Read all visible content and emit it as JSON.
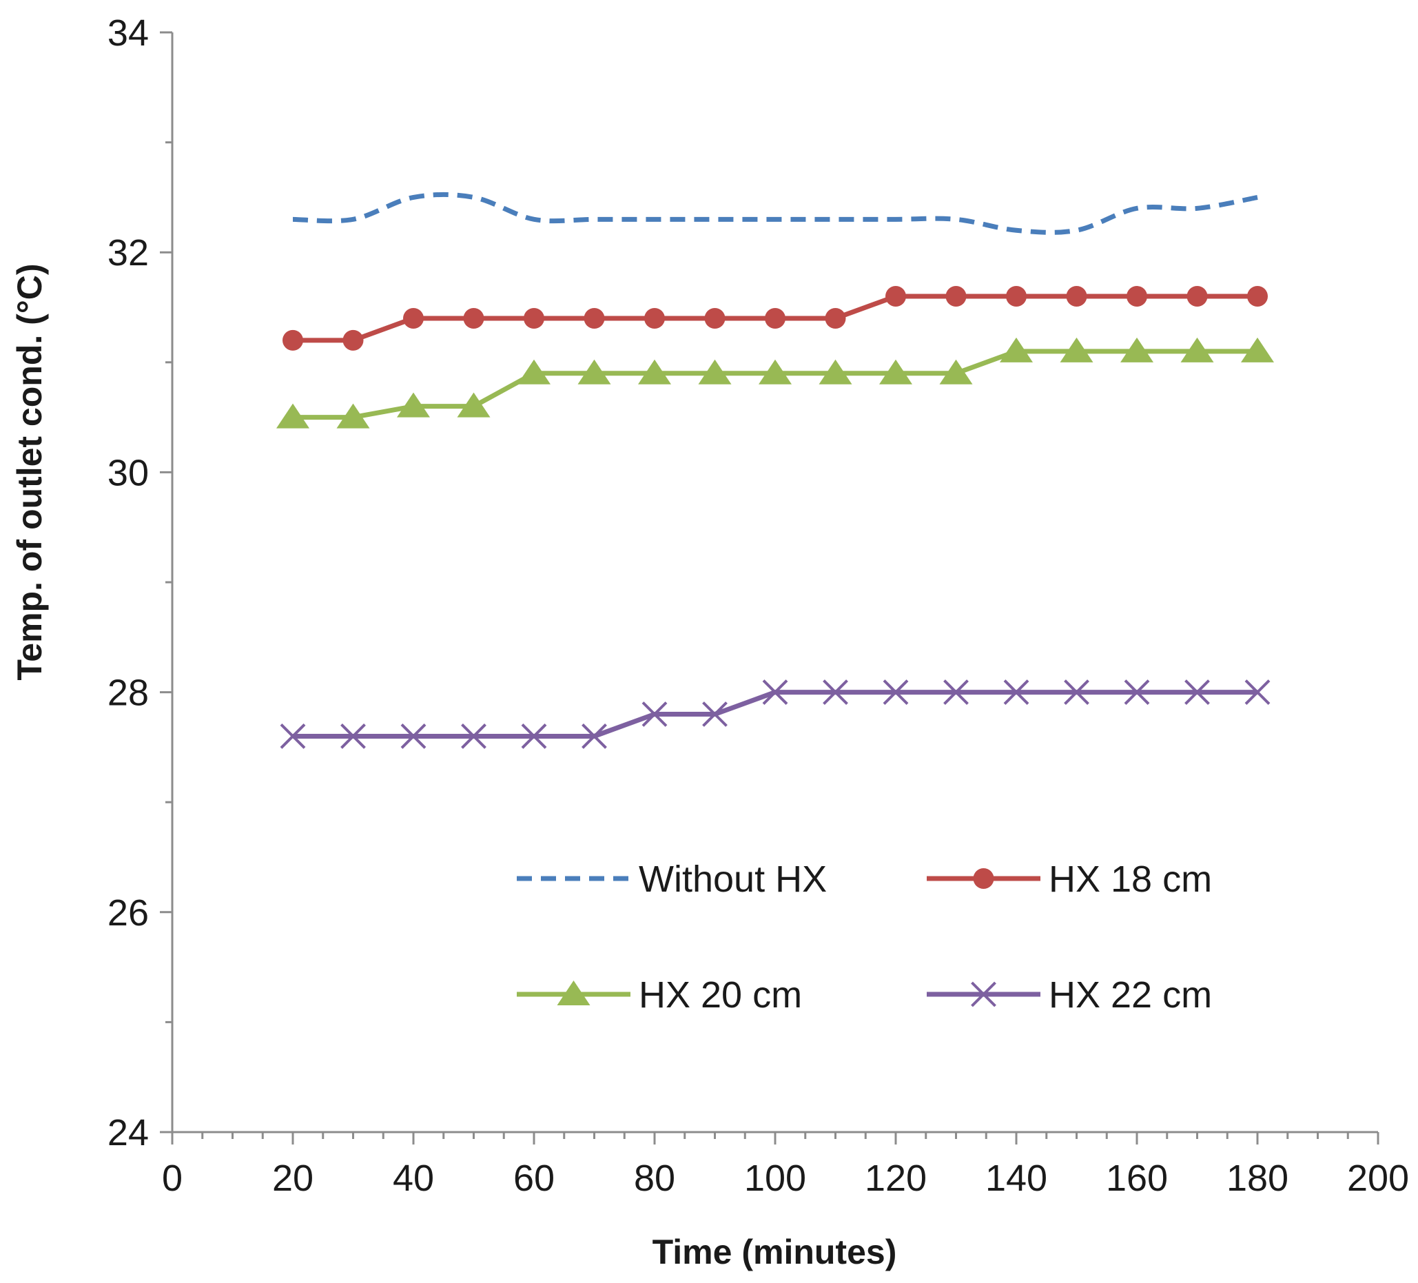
{
  "chart_data": {
    "type": "line",
    "title": "",
    "xlabel": "Time (minutes)",
    "ylabel": "Temp. of outlet cond. (°C)",
    "xlim": [
      0,
      200
    ],
    "ylim": [
      24,
      34
    ],
    "x_ticks": [
      0,
      20,
      40,
      60,
      80,
      100,
      120,
      140,
      160,
      180,
      200
    ],
    "y_ticks": [
      24,
      26,
      28,
      30,
      32,
      34
    ],
    "x_minor_step": 5,
    "y_minor_step": 1,
    "grid": false,
    "legend_position": "bottom-center",
    "x": [
      20,
      30,
      40,
      50,
      60,
      70,
      80,
      90,
      100,
      110,
      120,
      130,
      140,
      150,
      160,
      170,
      180
    ],
    "series": [
      {
        "name": "Without HX",
        "color": "#4a7ebb",
        "style": "dashed-smooth",
        "marker": "none",
        "values": [
          32.3,
          32.3,
          32.5,
          32.5,
          32.3,
          32.3,
          32.3,
          32.3,
          32.3,
          32.3,
          32.3,
          32.3,
          32.2,
          32.2,
          32.4,
          32.4,
          32.5
        ]
      },
      {
        "name": "HX 18 cm",
        "color": "#be4b48",
        "style": "solid",
        "marker": "circle",
        "values": [
          31.2,
          31.2,
          31.4,
          31.4,
          31.4,
          31.4,
          31.4,
          31.4,
          31.4,
          31.4,
          31.6,
          31.6,
          31.6,
          31.6,
          31.6,
          31.6,
          31.6
        ]
      },
      {
        "name": "HX 20 cm",
        "color": "#98b954",
        "style": "solid",
        "marker": "triangle",
        "values": [
          30.5,
          30.5,
          30.6,
          30.6,
          30.9,
          30.9,
          30.9,
          30.9,
          30.9,
          30.9,
          30.9,
          30.9,
          31.1,
          31.1,
          31.1,
          31.1,
          31.1
        ]
      },
      {
        "name": "HX 22 cm",
        "color": "#7d60a0",
        "style": "solid",
        "marker": "x",
        "values": [
          27.6,
          27.6,
          27.6,
          27.6,
          27.6,
          27.6,
          27.8,
          27.8,
          28.0,
          28.0,
          28.0,
          28.0,
          28.0,
          28.0,
          28.0,
          28.0,
          28.0
        ]
      }
    ]
  }
}
